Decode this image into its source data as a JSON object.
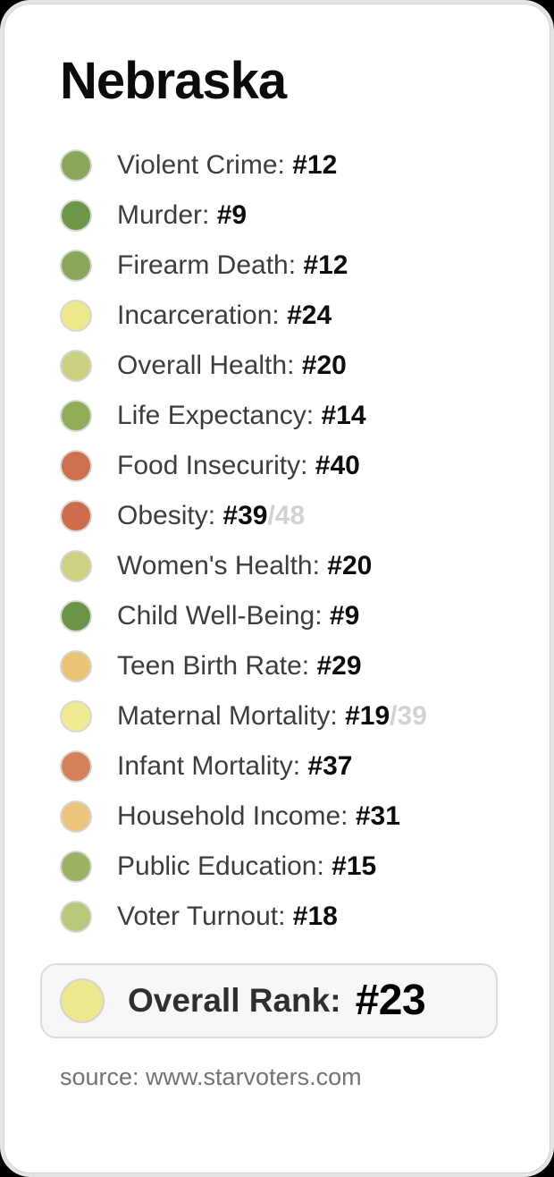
{
  "card": {
    "title": "Nebraska",
    "metrics": [
      {
        "label": "Violent Crime:",
        "rank": "#12",
        "suffix": "",
        "color": "#8BA85A"
      },
      {
        "label": "Murder:",
        "rank": "#9",
        "suffix": "",
        "color": "#6E9749"
      },
      {
        "label": "Firearm Death:",
        "rank": "#12",
        "suffix": "",
        "color": "#8BA85A"
      },
      {
        "label": "Incarceration:",
        "rank": "#24",
        "suffix": "",
        "color": "#EDE88C"
      },
      {
        "label": "Overall Health:",
        "rank": "#20",
        "suffix": "",
        "color": "#CBD180"
      },
      {
        "label": "Life Expectancy:",
        "rank": "#14",
        "suffix": "",
        "color": "#92AC57"
      },
      {
        "label": "Food Insecurity:",
        "rank": "#40",
        "suffix": "",
        "color": "#CE7050"
      },
      {
        "label": "Obesity:",
        "rank": "#39",
        "suffix": "/48",
        "color": "#CE6C4E"
      },
      {
        "label": "Women's Health:",
        "rank": "#20",
        "suffix": "",
        "color": "#CFD282"
      },
      {
        "label": "Child Well-Being:",
        "rank": "#9",
        "suffix": "",
        "color": "#6B9449"
      },
      {
        "label": "Teen Birth Rate:",
        "rank": "#29",
        "suffix": "",
        "color": "#EAC577"
      },
      {
        "label": "Maternal Mortality:",
        "rank": "#19",
        "suffix": "/39",
        "color": "#F0EA92"
      },
      {
        "label": "Infant Mortality:",
        "rank": "#37",
        "suffix": "",
        "color": "#D4825C"
      },
      {
        "label": "Household Income:",
        "rank": "#31",
        "suffix": "",
        "color": "#ECC67F"
      },
      {
        "label": "Public Education:",
        "rank": "#15",
        "suffix": "",
        "color": "#9DB364"
      },
      {
        "label": "Voter Turnout:",
        "rank": "#18",
        "suffix": "",
        "color": "#B9C97B"
      }
    ],
    "overall": {
      "label": "Overall Rank:",
      "rank": "#23",
      "color": "#ECE88D"
    },
    "source": "source: www.starvoters.com"
  },
  "colors": {
    "page_background": "#000000",
    "frame_background": "#e4e4e6",
    "card_background": "#ffffff",
    "card_border": "#d3d3d5",
    "label_text": "#3d3d3d",
    "rank_text": "#0d0d0d",
    "suffix_text": "#d2d2d4",
    "overall_box_background": "#f7f7f9",
    "overall_box_border": "#dcdce0",
    "source_text": "#737373"
  }
}
